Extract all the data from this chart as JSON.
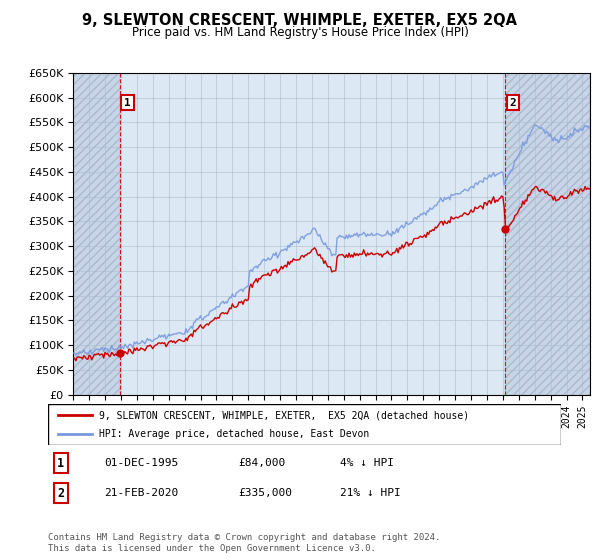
{
  "title": "9, SLEWTON CRESCENT, WHIMPLE, EXETER, EX5 2QA",
  "subtitle": "Price paid vs. HM Land Registry's House Price Index (HPI)",
  "legend_line1": "9, SLEWTON CRESCENT, WHIMPLE, EXETER,  EX5 2QA (detached house)",
  "legend_line2": "HPI: Average price, detached house, East Devon",
  "annotation1_label": "1",
  "annotation1_date": "01-DEC-1995",
  "annotation1_price": "£84,000",
  "annotation1_hpi": "4% ↓ HPI",
  "annotation2_label": "2",
  "annotation2_date": "21-FEB-2020",
  "annotation2_price": "£335,000",
  "annotation2_hpi": "21% ↓ HPI",
  "footer": "Contains HM Land Registry data © Crown copyright and database right 2024.\nThis data is licensed under the Open Government Licence v3.0.",
  "sale1_year": 1995.92,
  "sale1_price": 84000,
  "sale2_year": 2020.13,
  "sale2_price": 335000,
  "hpi_color": "#7799dd",
  "price_color": "#cc0000",
  "chart_bg_color": "#dde8f5",
  "hatch_bg_color": "#c8d4e8",
  "grid_color": "#aabbcc",
  "ylim_min": 0,
  "ylim_max": 650000,
  "xlim_min": 1993.0,
  "xlim_max": 2025.5
}
